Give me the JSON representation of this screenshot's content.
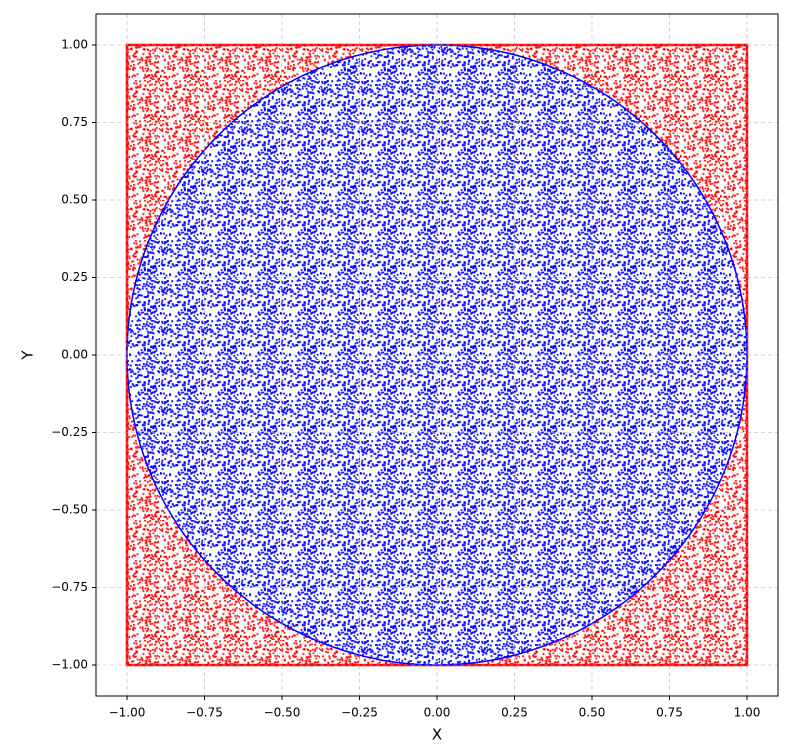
{
  "chart_data": {
    "type": "scatter",
    "xlabel": "X",
    "ylabel": "Y",
    "xlim": [
      -1.1,
      1.1
    ],
    "ylim": [
      -1.1,
      1.1
    ],
    "xticks": [
      {
        "value": -1,
        "label": "−1.00"
      },
      {
        "value": -0.75,
        "label": "−0.75"
      },
      {
        "value": -0.5,
        "label": "−0.50"
      },
      {
        "value": -0.25,
        "label": "−0.25"
      },
      {
        "value": 0,
        "label": "0.00"
      },
      {
        "value": 0.25,
        "label": "0.25"
      },
      {
        "value": 0.5,
        "label": "0.50"
      },
      {
        "value": 0.75,
        "label": "0.75"
      },
      {
        "value": 1,
        "label": "1.00"
      }
    ],
    "yticks": [
      {
        "value": -1,
        "label": "−1.00"
      },
      {
        "value": -0.75,
        "label": "−0.75"
      },
      {
        "value": -0.5,
        "label": "−0.50"
      },
      {
        "value": -0.25,
        "label": "−0.25"
      },
      {
        "value": 0,
        "label": "0.00"
      },
      {
        "value": 0.25,
        "label": "0.25"
      },
      {
        "value": 0.5,
        "label": "0.50"
      },
      {
        "value": 0.75,
        "label": "0.75"
      },
      {
        "value": 1,
        "label": "1.00"
      }
    ],
    "grid": true,
    "square": {
      "x": [
        -1,
        1
      ],
      "y": [
        -1,
        1
      ],
      "color": "#ff0000"
    },
    "circle": {
      "center": [
        0,
        0
      ],
      "radius": 1,
      "color": "#0000ff"
    }
  }
}
